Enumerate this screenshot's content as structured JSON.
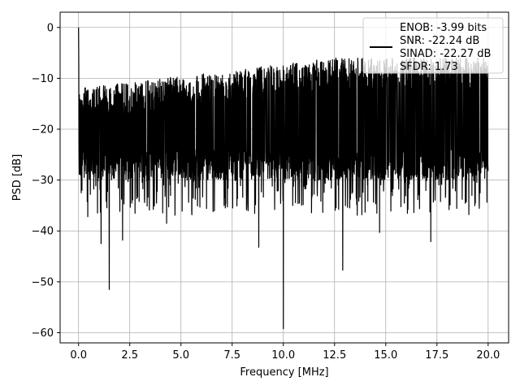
{
  "chart_data": {
    "type": "line",
    "xlabel": "Frequency [MHz]",
    "ylabel": "PSD [dB]",
    "xlim": [
      -0.9,
      21.0
    ],
    "ylim": [
      -62.0,
      3.0
    ],
    "x_ticks": [
      0.0,
      2.5,
      5.0,
      7.5,
      10.0,
      12.5,
      15.0,
      17.5,
      20.0
    ],
    "x_tick_labels": [
      "0.0",
      "2.5",
      "5.0",
      "7.5",
      "10.0",
      "12.5",
      "15.0",
      "17.5",
      "20.0"
    ],
    "y_ticks": [
      0,
      -10,
      -20,
      -30,
      -40,
      -50,
      -60
    ],
    "y_tick_labels": [
      "0",
      "−10",
      "−20",
      "−30",
      "−40",
      "−50",
      "−60"
    ],
    "grid": true,
    "legend_position": "top-right",
    "series": [
      {
        "name": "ENOB: -3.99 bits\nSNR: -22.24 dB\nSINAD: -22.27 dB\nSFDR: 1.73",
        "color": "#000000",
        "description_points": {
          "x_range": [
            0.0,
            20.0
          ],
          "envelope_top_left": -12,
          "envelope_top_right": -6,
          "envelope_bottom": -30,
          "peak": {
            "x": 0.0,
            "y": 0.0
          },
          "dips": [
            {
              "x": 0.13,
              "y": -32.5
            },
            {
              "x": 0.45,
              "y": -37.2
            },
            {
              "x": 1.1,
              "y": -42.5
            },
            {
              "x": 1.5,
              "y": -51.5
            },
            {
              "x": 2.15,
              "y": -41.8
            },
            {
              "x": 4.3,
              "y": -38.5
            },
            {
              "x": 8.8,
              "y": -43.2
            },
            {
              "x": 10.0,
              "y": -59.2
            },
            {
              "x": 12.9,
              "y": -47.7
            },
            {
              "x": 14.7,
              "y": -40.3
            },
            {
              "x": 17.2,
              "y": -42.1
            }
          ]
        }
      }
    ],
    "legend_lines": [
      "ENOB: -3.99 bits",
      "SNR: -22.24 dB",
      "SINAD: -22.27 dB",
      "SFDR: 1.73"
    ]
  },
  "colors": {
    "line": "#000000",
    "grid": "#b0b0b0",
    "axes": "#000000",
    "background": "#ffffff"
  }
}
